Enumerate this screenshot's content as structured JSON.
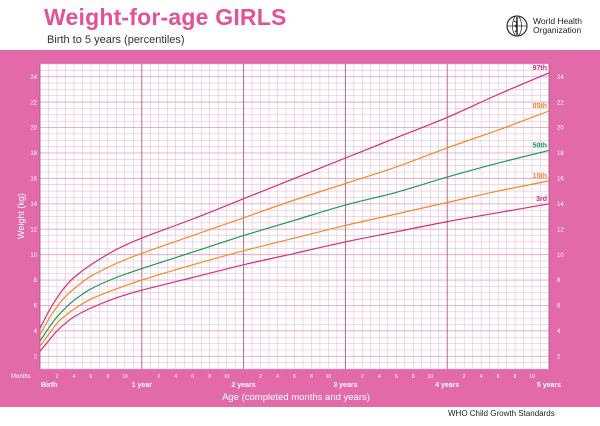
{
  "header": {
    "title": "Weight-for-age GIRLS",
    "subtitle": "Birth to 5 years (percentiles)",
    "org_line1": "World Health",
    "org_line2": "Organization",
    "logo_icon": "who-emblem-icon"
  },
  "footer": {
    "text": "WHO Child Growth Standards"
  },
  "colors": {
    "band": "#e26aa8",
    "grid": "#e9a8c9",
    "line_97_3": "#d12f7e",
    "line_85_15": "#f08a2c",
    "line_50": "#199a58"
  },
  "chart_data": {
    "type": "line",
    "xlabel": "Age (completed months and years)",
    "ylabel": "Weight (kg)",
    "months_label": "Months",
    "xlim": [
      0,
      60
    ],
    "ylim": [
      1,
      25
    ],
    "y_ticks": [
      2,
      4,
      6,
      8,
      10,
      12,
      14,
      16,
      18,
      20,
      22,
      24
    ],
    "x_major_labels": [
      {
        "month": 0,
        "label": "Birth"
      },
      {
        "month": 12,
        "label": "1 year"
      },
      {
        "month": 24,
        "label": "2 years"
      },
      {
        "month": 36,
        "label": "3 years"
      },
      {
        "month": 48,
        "label": "4 years"
      },
      {
        "month": 60,
        "label": "5 years"
      }
    ],
    "x_minor_labels": [
      "2",
      "4",
      "6",
      "8",
      "10"
    ],
    "x": [
      0,
      1,
      2,
      3,
      4,
      6,
      9,
      12,
      18,
      24,
      30,
      36,
      42,
      48,
      54,
      60
    ],
    "series": [
      {
        "name": "97th",
        "color": "#d12f7e",
        "values": [
          4.2,
          5.5,
          6.6,
          7.5,
          8.2,
          9.2,
          10.4,
          11.3,
          12.8,
          14.4,
          16.0,
          17.6,
          19.2,
          20.8,
          22.6,
          24.3
        ]
      },
      {
        "name": "85th",
        "color": "#f08a2c",
        "values": [
          3.7,
          4.9,
          5.9,
          6.7,
          7.3,
          8.3,
          9.3,
          10.1,
          11.5,
          12.9,
          14.3,
          15.6,
          16.9,
          18.4,
          19.8,
          21.3
        ]
      },
      {
        "name": "50th",
        "color": "#199a58",
        "values": [
          3.2,
          4.2,
          5.1,
          5.8,
          6.4,
          7.3,
          8.2,
          8.9,
          10.2,
          11.5,
          12.7,
          13.9,
          14.9,
          16.1,
          17.2,
          18.2
        ]
      },
      {
        "name": "15th",
        "color": "#f08a2c",
        "values": [
          2.8,
          3.7,
          4.6,
          5.2,
          5.7,
          6.5,
          7.3,
          8.0,
          9.2,
          10.3,
          11.3,
          12.3,
          13.2,
          14.1,
          15.0,
          15.8
        ]
      },
      {
        "name": "3rd",
        "color": "#d12f7e",
        "values": [
          2.4,
          3.2,
          4.0,
          4.6,
          5.1,
          5.8,
          6.6,
          7.2,
          8.2,
          9.2,
          10.1,
          11.0,
          11.8,
          12.6,
          13.3,
          14.0
        ]
      }
    ]
  }
}
